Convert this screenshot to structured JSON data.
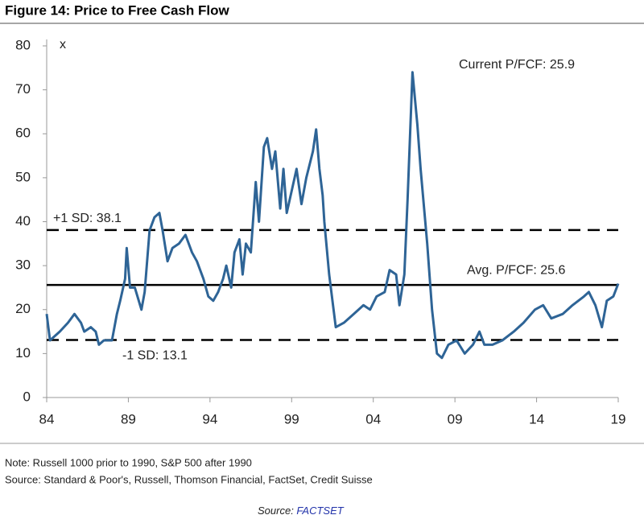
{
  "chart_data": {
    "type": "line",
    "title": "Figure 14: Price to Free Cash Flow",
    "y_unit": "x",
    "annotation": "Current P/FCF: 25.9",
    "x": [
      1984.0,
      1984.2,
      1984.8,
      1985.3,
      1985.7,
      1986.1,
      1986.3,
      1986.7,
      1987.0,
      1987.2,
      1987.5,
      1988.0,
      1988.3,
      1988.5,
      1988.8,
      1988.9,
      1989.1,
      1989.4,
      1989.8,
      1990.0,
      1990.3,
      1990.6,
      1990.9,
      1991.1,
      1991.4,
      1991.7,
      1992.1,
      1992.5,
      1992.9,
      1993.2,
      1993.6,
      1993.9,
      1994.2,
      1994.5,
      1994.8,
      1995.0,
      1995.3,
      1995.5,
      1995.8,
      1996.0,
      1996.2,
      1996.5,
      1996.8,
      1997.0,
      1997.3,
      1997.5,
      1997.8,
      1998.0,
      1998.3,
      1998.5,
      1998.7,
      1999.0,
      1999.3,
      1999.6,
      1999.9,
      2000.3,
      2000.5,
      2000.7,
      2000.9,
      2001.0,
      2001.3,
      2001.7,
      2002.2,
      2002.8,
      2003.4,
      2003.8,
      2004.2,
      2004.7,
      2005.0,
      2005.4,
      2005.6,
      2005.9,
      2006.1,
      2006.4,
      2006.7,
      2006.9,
      2007.3,
      2007.6,
      2007.9,
      2008.2,
      2008.6,
      2009.1,
      2009.6,
      2010.1,
      2010.5,
      2010.8,
      2011.3,
      2011.9,
      2012.6,
      2013.2,
      2013.9,
      2014.4,
      2014.9,
      2015.6,
      2016.2,
      2016.9,
      2017.2,
      2017.6,
      2018.0,
      2018.3,
      2018.7,
      2019.0
    ],
    "values": [
      19,
      13,
      15,
      17,
      19,
      17,
      15,
      16,
      15,
      12,
      13,
      13,
      19,
      22,
      27,
      34,
      25,
      25,
      20,
      24,
      38,
      41,
      42,
      38,
      31,
      34,
      35,
      37,
      33,
      31,
      27,
      23,
      22,
      24,
      27,
      30,
      25,
      33,
      36,
      28,
      35,
      33,
      49,
      40,
      57,
      59,
      52,
      56,
      43,
      52,
      42,
      47,
      52,
      44,
      50,
      56,
      61,
      52,
      46,
      40,
      28,
      16,
      17,
      19,
      21,
      20,
      23,
      24,
      29,
      28,
      21,
      28,
      45,
      74,
      62,
      52,
      35,
      20,
      10,
      9,
      12,
      13,
      10,
      12,
      15,
      12,
      12,
      13,
      15,
      17,
      20,
      21,
      18,
      19,
      21,
      23,
      24,
      21,
      16,
      22,
      23,
      25.9
    ],
    "color": "#2e6496",
    "xlim": [
      1984,
      2019
    ],
    "xticks": [
      {
        "value": 1984,
        "label": "84"
      },
      {
        "value": 1989,
        "label": "89"
      },
      {
        "value": 1994,
        "label": "94"
      },
      {
        "value": 1999,
        "label": "99"
      },
      {
        "value": 2004,
        "label": "04"
      },
      {
        "value": 2009,
        "label": "09"
      },
      {
        "value": 2014,
        "label": "14"
      },
      {
        "value": 2019,
        "label": "19"
      }
    ],
    "ylim": [
      0,
      80
    ],
    "yticks": [
      0,
      10,
      20,
      30,
      40,
      50,
      60,
      70,
      80
    ],
    "reference_lines": [
      {
        "label": "+1 SD: 38.1",
        "value": 38.1,
        "style": "dashed"
      },
      {
        "label": "Avg. P/FCF: 25.6",
        "value": 25.6,
        "style": "solid"
      },
      {
        "label": "-1 SD: 13.1",
        "value": 13.1,
        "style": "dashed"
      }
    ]
  },
  "notes": [
    "Note: Russell 1000 prior to 1990, S&P 500 after 1990",
    "Source: Standard & Poor's, Russell, Thomson Financial, FactSet, Credit Suisse"
  ],
  "footer": {
    "prefix": "Source: ",
    "link": "FACTSET"
  }
}
